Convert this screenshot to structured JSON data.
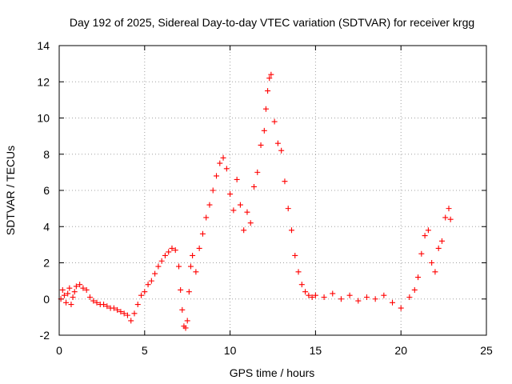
{
  "chart_data": {
    "type": "scatter",
    "title": "Day 192 of 2025, Sidereal Day-to-day VTEC variation (SDTVAR) for receiver krgg",
    "xlabel": "GPS time / hours",
    "ylabel": "SDTVAR / TECUs",
    "xlim": [
      0,
      25
    ],
    "ylim": [
      -2,
      14
    ],
    "xticks": [
      "0",
      "5",
      "10",
      "15",
      "20",
      "25"
    ],
    "xtick_values": [
      0,
      5,
      10,
      15,
      20,
      25
    ],
    "yticks": [
      "-2",
      "0",
      "2",
      "4",
      "6",
      "8",
      "10",
      "12",
      "14"
    ],
    "ytick_values": [
      -2,
      0,
      2,
      4,
      6,
      8,
      10,
      12,
      14
    ],
    "grid": true,
    "marker": "plus",
    "series": [
      {
        "name": "SDTVAR",
        "color": "#ff0000",
        "x": [
          0.1,
          0.2,
          0.3,
          0.4,
          0.5,
          0.6,
          0.7,
          0.8,
          0.9,
          1.0,
          1.2,
          1.4,
          1.6,
          1.8,
          2.0,
          2.2,
          2.4,
          2.6,
          2.8,
          3.0,
          3.2,
          3.4,
          3.6,
          3.8,
          4.0,
          4.2,
          4.4,
          4.6,
          4.8,
          5.0,
          5.2,
          5.4,
          5.6,
          5.8,
          6.0,
          6.2,
          6.4,
          6.6,
          6.8,
          7.0,
          7.1,
          7.2,
          7.3,
          7.4,
          7.5,
          7.6,
          7.7,
          7.8,
          8.0,
          8.2,
          8.4,
          8.6,
          8.8,
          9.0,
          9.2,
          9.4,
          9.6,
          9.8,
          10.0,
          10.2,
          10.4,
          10.6,
          10.8,
          11.0,
          11.2,
          11.4,
          11.6,
          11.8,
          12.0,
          12.1,
          12.2,
          12.3,
          12.4,
          12.6,
          12.8,
          13.0,
          13.2,
          13.4,
          13.6,
          13.8,
          14.0,
          14.2,
          14.4,
          14.6,
          14.8,
          15.0,
          15.5,
          16.0,
          16.5,
          17.0,
          17.5,
          18.0,
          18.5,
          19.0,
          19.5,
          20.0,
          20.5,
          20.8,
          21.0,
          21.2,
          21.4,
          21.6,
          21.8,
          22.0,
          22.2,
          22.4,
          22.6,
          22.8,
          22.9
        ],
        "values": [
          0.0,
          0.5,
          0.2,
          -0.2,
          0.3,
          0.6,
          -0.3,
          0.1,
          0.4,
          0.7,
          0.8,
          0.6,
          0.5,
          0.1,
          -0.1,
          -0.2,
          -0.3,
          -0.3,
          -0.4,
          -0.5,
          -0.5,
          -0.6,
          -0.7,
          -0.8,
          -0.9,
          -1.2,
          -0.8,
          -0.3,
          0.2,
          0.4,
          0.8,
          1.0,
          1.4,
          1.8,
          2.1,
          2.4,
          2.6,
          2.8,
          2.7,
          1.8,
          0.5,
          -0.6,
          -1.5,
          -1.6,
          -1.2,
          0.4,
          1.8,
          2.4,
          1.5,
          2.8,
          3.6,
          4.5,
          5.2,
          6.0,
          6.8,
          7.5,
          7.8,
          7.2,
          5.8,
          4.9,
          6.6,
          5.2,
          3.8,
          4.8,
          4.2,
          6.2,
          7.0,
          8.5,
          9.3,
          10.5,
          11.5,
          12.2,
          12.4,
          9.8,
          8.6,
          8.2,
          6.5,
          5.0,
          3.8,
          2.4,
          1.5,
          0.8,
          0.4,
          0.2,
          0.1,
          0.2,
          0.1,
          0.3,
          0.0,
          0.2,
          -0.1,
          0.1,
          0.0,
          0.2,
          -0.2,
          -0.5,
          0.1,
          0.5,
          1.2,
          2.5,
          3.5,
          3.8,
          2.0,
          1.5,
          2.8,
          3.2,
          4.5,
          5.0,
          4.4
        ]
      }
    ]
  }
}
